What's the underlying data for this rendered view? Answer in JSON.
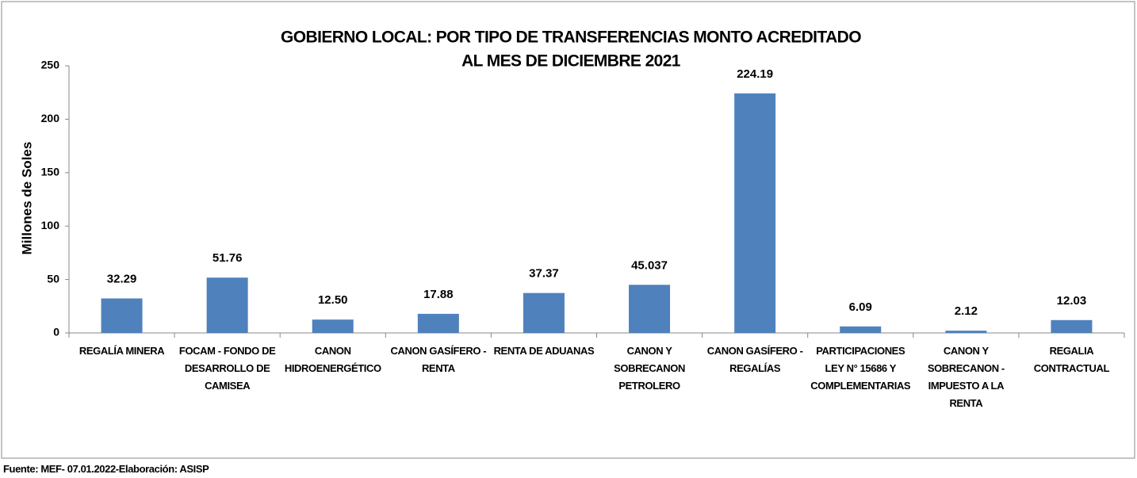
{
  "chart_data": {
    "type": "bar",
    "title": "GOBIERNO LOCAL: POR TIPO DE TRANSFERENCIAS MONTO ACREDITADO",
    "subtitle": "AL MES DE DICIEMBRE 2021",
    "y_label": "Millones de Soles",
    "source": "Fuente: MEF- 07.01.2022-Elaboración: ASISP",
    "categories": [
      "REGALÍA MINERA",
      "FOCAM - FONDO DE DESARROLLO DE CAMISEA",
      "CANON HIDROENERGÉTICO",
      "CANON GASÍFERO - RENTA",
      "RENTA DE ADUANAS",
      "CANON Y SOBRECANON PETROLERO",
      "CANON GASÍFERO - REGALÍAS",
      "PARTICIPACIONES LEY N° 15686 Y COMPLEMENTARIAS",
      "CANON Y SOBRECANON - IMPUESTO A LA RENTA",
      "REGALIA CONTRACTUAL"
    ],
    "values": [
      32.29,
      51.76,
      12.5,
      17.88,
      37.37,
      45.037,
      224.19,
      6.09,
      2.12,
      12.03
    ],
    "value_labels": [
      "32.29",
      "51.76",
      "12.50",
      "17.88",
      "37.37",
      "45.037",
      "224.19",
      "6.09",
      "2.12",
      "12.03"
    ],
    "color": "#4f81bd",
    "ylim": [
      0,
      250
    ],
    "yticks": [
      0,
      50,
      100,
      150,
      200,
      250
    ],
    "grid": false
  }
}
